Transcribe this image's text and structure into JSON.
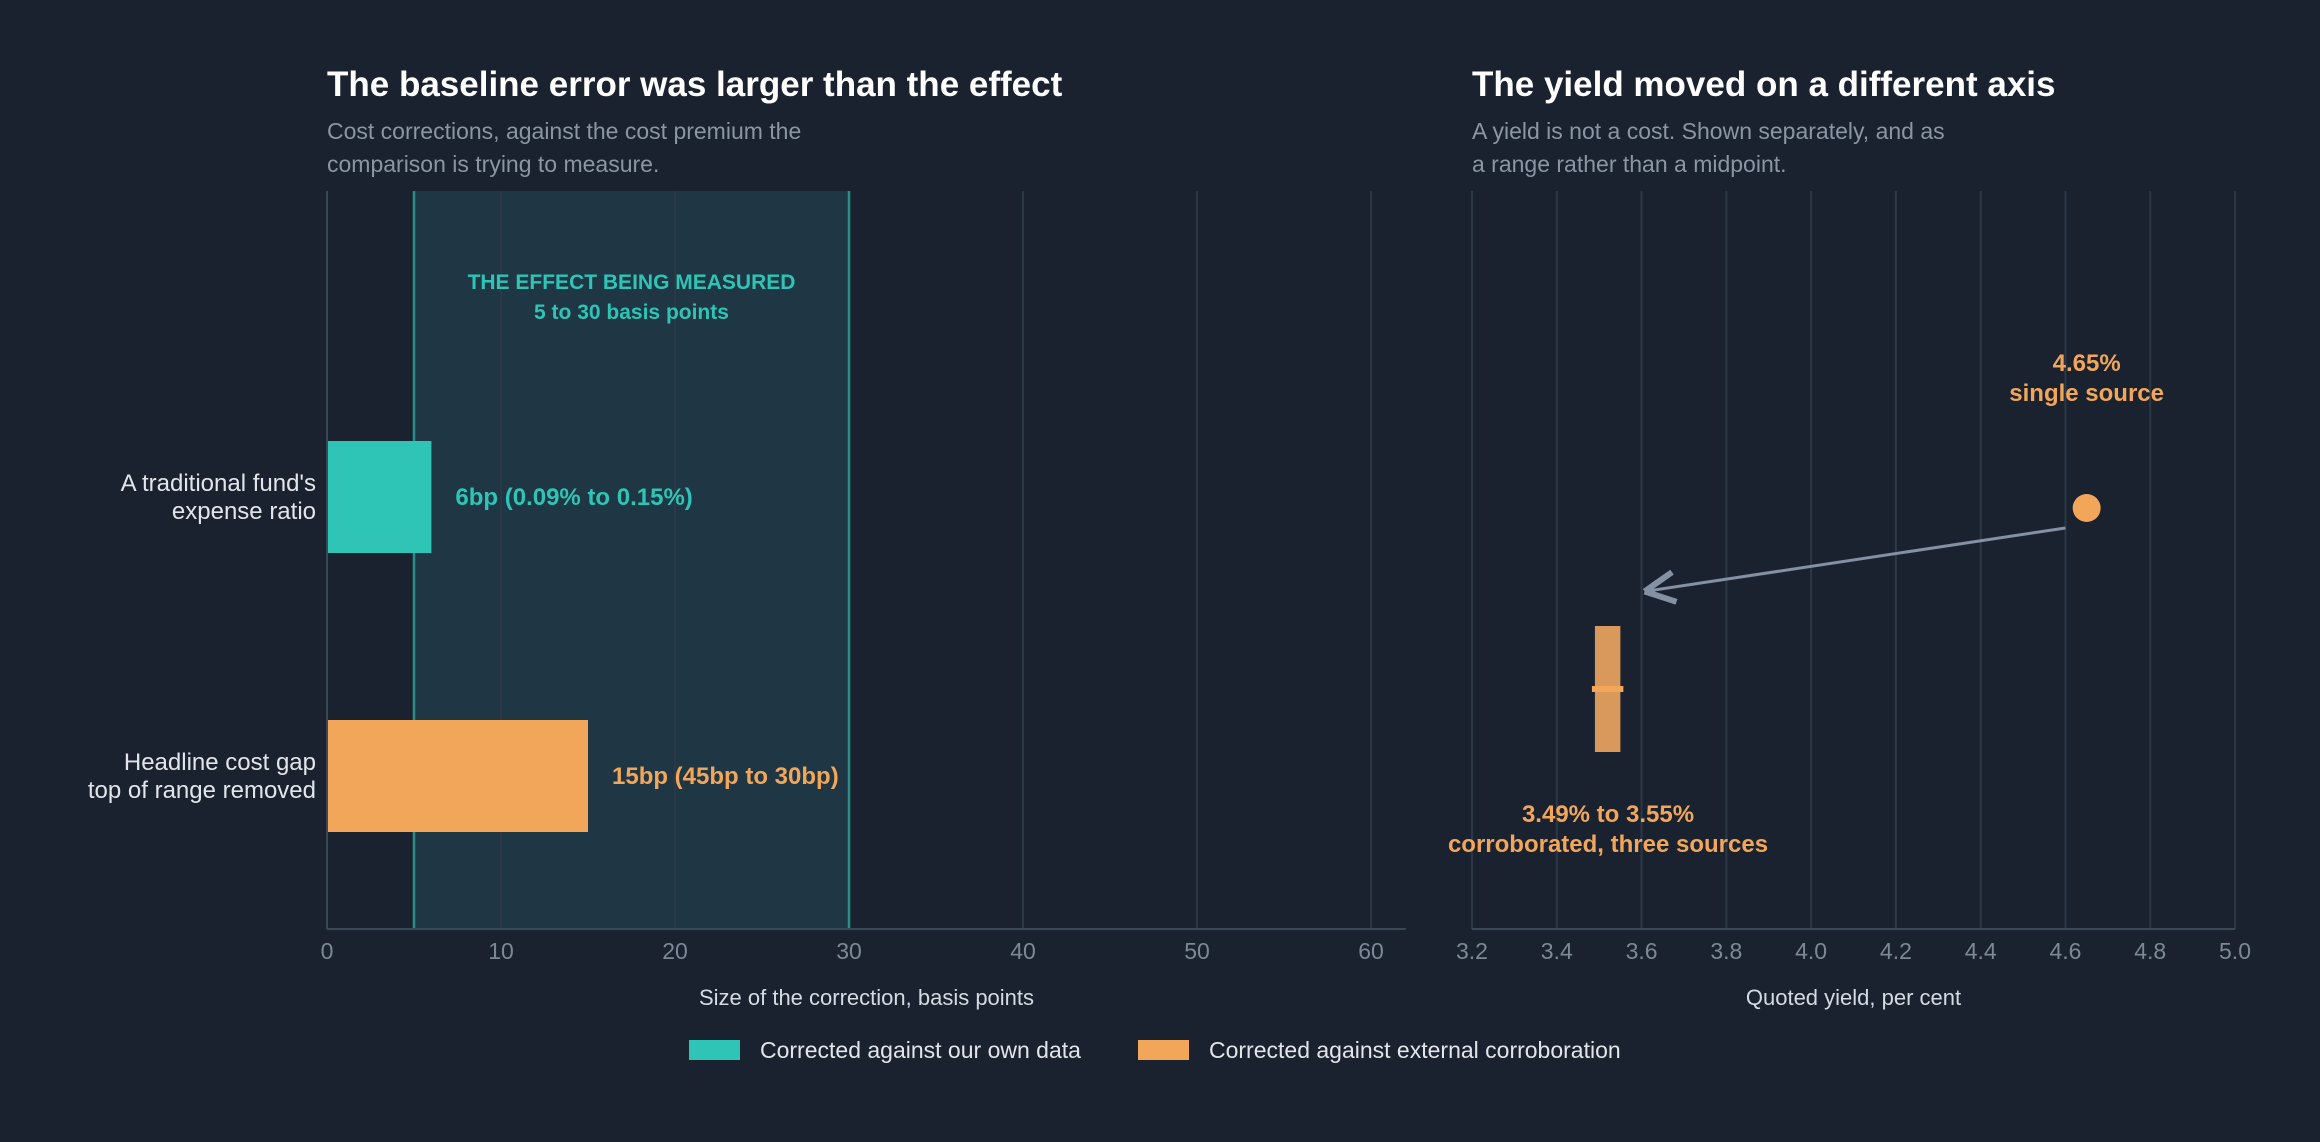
{
  "colors": {
    "background": "#1a2230",
    "teal": "#2ec4b6",
    "orange": "#f2a65a",
    "orange_muted": "#d9995c",
    "arrow": "#8391a3",
    "shade": "#1f3644"
  },
  "chart_data": [
    {
      "type": "bar",
      "orientation": "horizontal",
      "title": "The baseline error was larger than the effect",
      "subtitle_lines": [
        "Cost corrections, against the cost premium the",
        "comparison is trying to measure."
      ],
      "xlabel": "Size of the correction, basis points",
      "xlim": [
        0,
        62
      ],
      "xticks": [
        0,
        10,
        20,
        30,
        40,
        50,
        60
      ],
      "grid": true,
      "bars": [
        {
          "label_lines": [
            "A traditional fund's",
            "expense ratio"
          ],
          "value": 6,
          "annotation": "6bp   (0.09% to 0.15%)",
          "series": "Corrected against our own data",
          "color": "#2ec4b6"
        },
        {
          "label_lines": [
            "Headline cost gap",
            "top of range removed"
          ],
          "value": 15,
          "annotation": "15bp   (45bp to 30bp)",
          "series": "Corrected against external corroboration",
          "color": "#f2a65a"
        }
      ],
      "shaded_band": {
        "from": 5,
        "to": 30,
        "label_lines": [
          "THE EFFECT BEING MEASURED",
          "5 to 30 basis points"
        ]
      }
    },
    {
      "type": "scatter",
      "title": "The yield moved on a different axis",
      "subtitle_lines": [
        "A yield is not a cost. Shown separately, and as",
        "a range rather than a midpoint."
      ],
      "xlabel": "Quoted yield, per cent",
      "xlim": [
        3.2,
        5.0
      ],
      "xticks": [
        "3.2",
        "3.4",
        "3.6",
        "3.8",
        "4.0",
        "4.2",
        "4.4",
        "4.6",
        "4.8",
        "5.0"
      ],
      "grid": true,
      "points": [
        {
          "kind": "point",
          "x": 4.65,
          "label_lines": [
            "4.65%",
            "single source"
          ],
          "color": "#f2a65a"
        },
        {
          "kind": "range",
          "low": 3.49,
          "high": 3.55,
          "mid": 3.52,
          "label_lines": [
            "3.49% to 3.55%",
            "corroborated, three sources"
          ],
          "color": "#d9995c"
        }
      ],
      "arrow": {
        "from": 4.6,
        "to": 3.6
      }
    }
  ],
  "legend": [
    {
      "label": "Corrected against our own data",
      "color": "#2ec4b6"
    },
    {
      "label": "Corrected against external corroboration",
      "color": "#f2a65a"
    }
  ]
}
